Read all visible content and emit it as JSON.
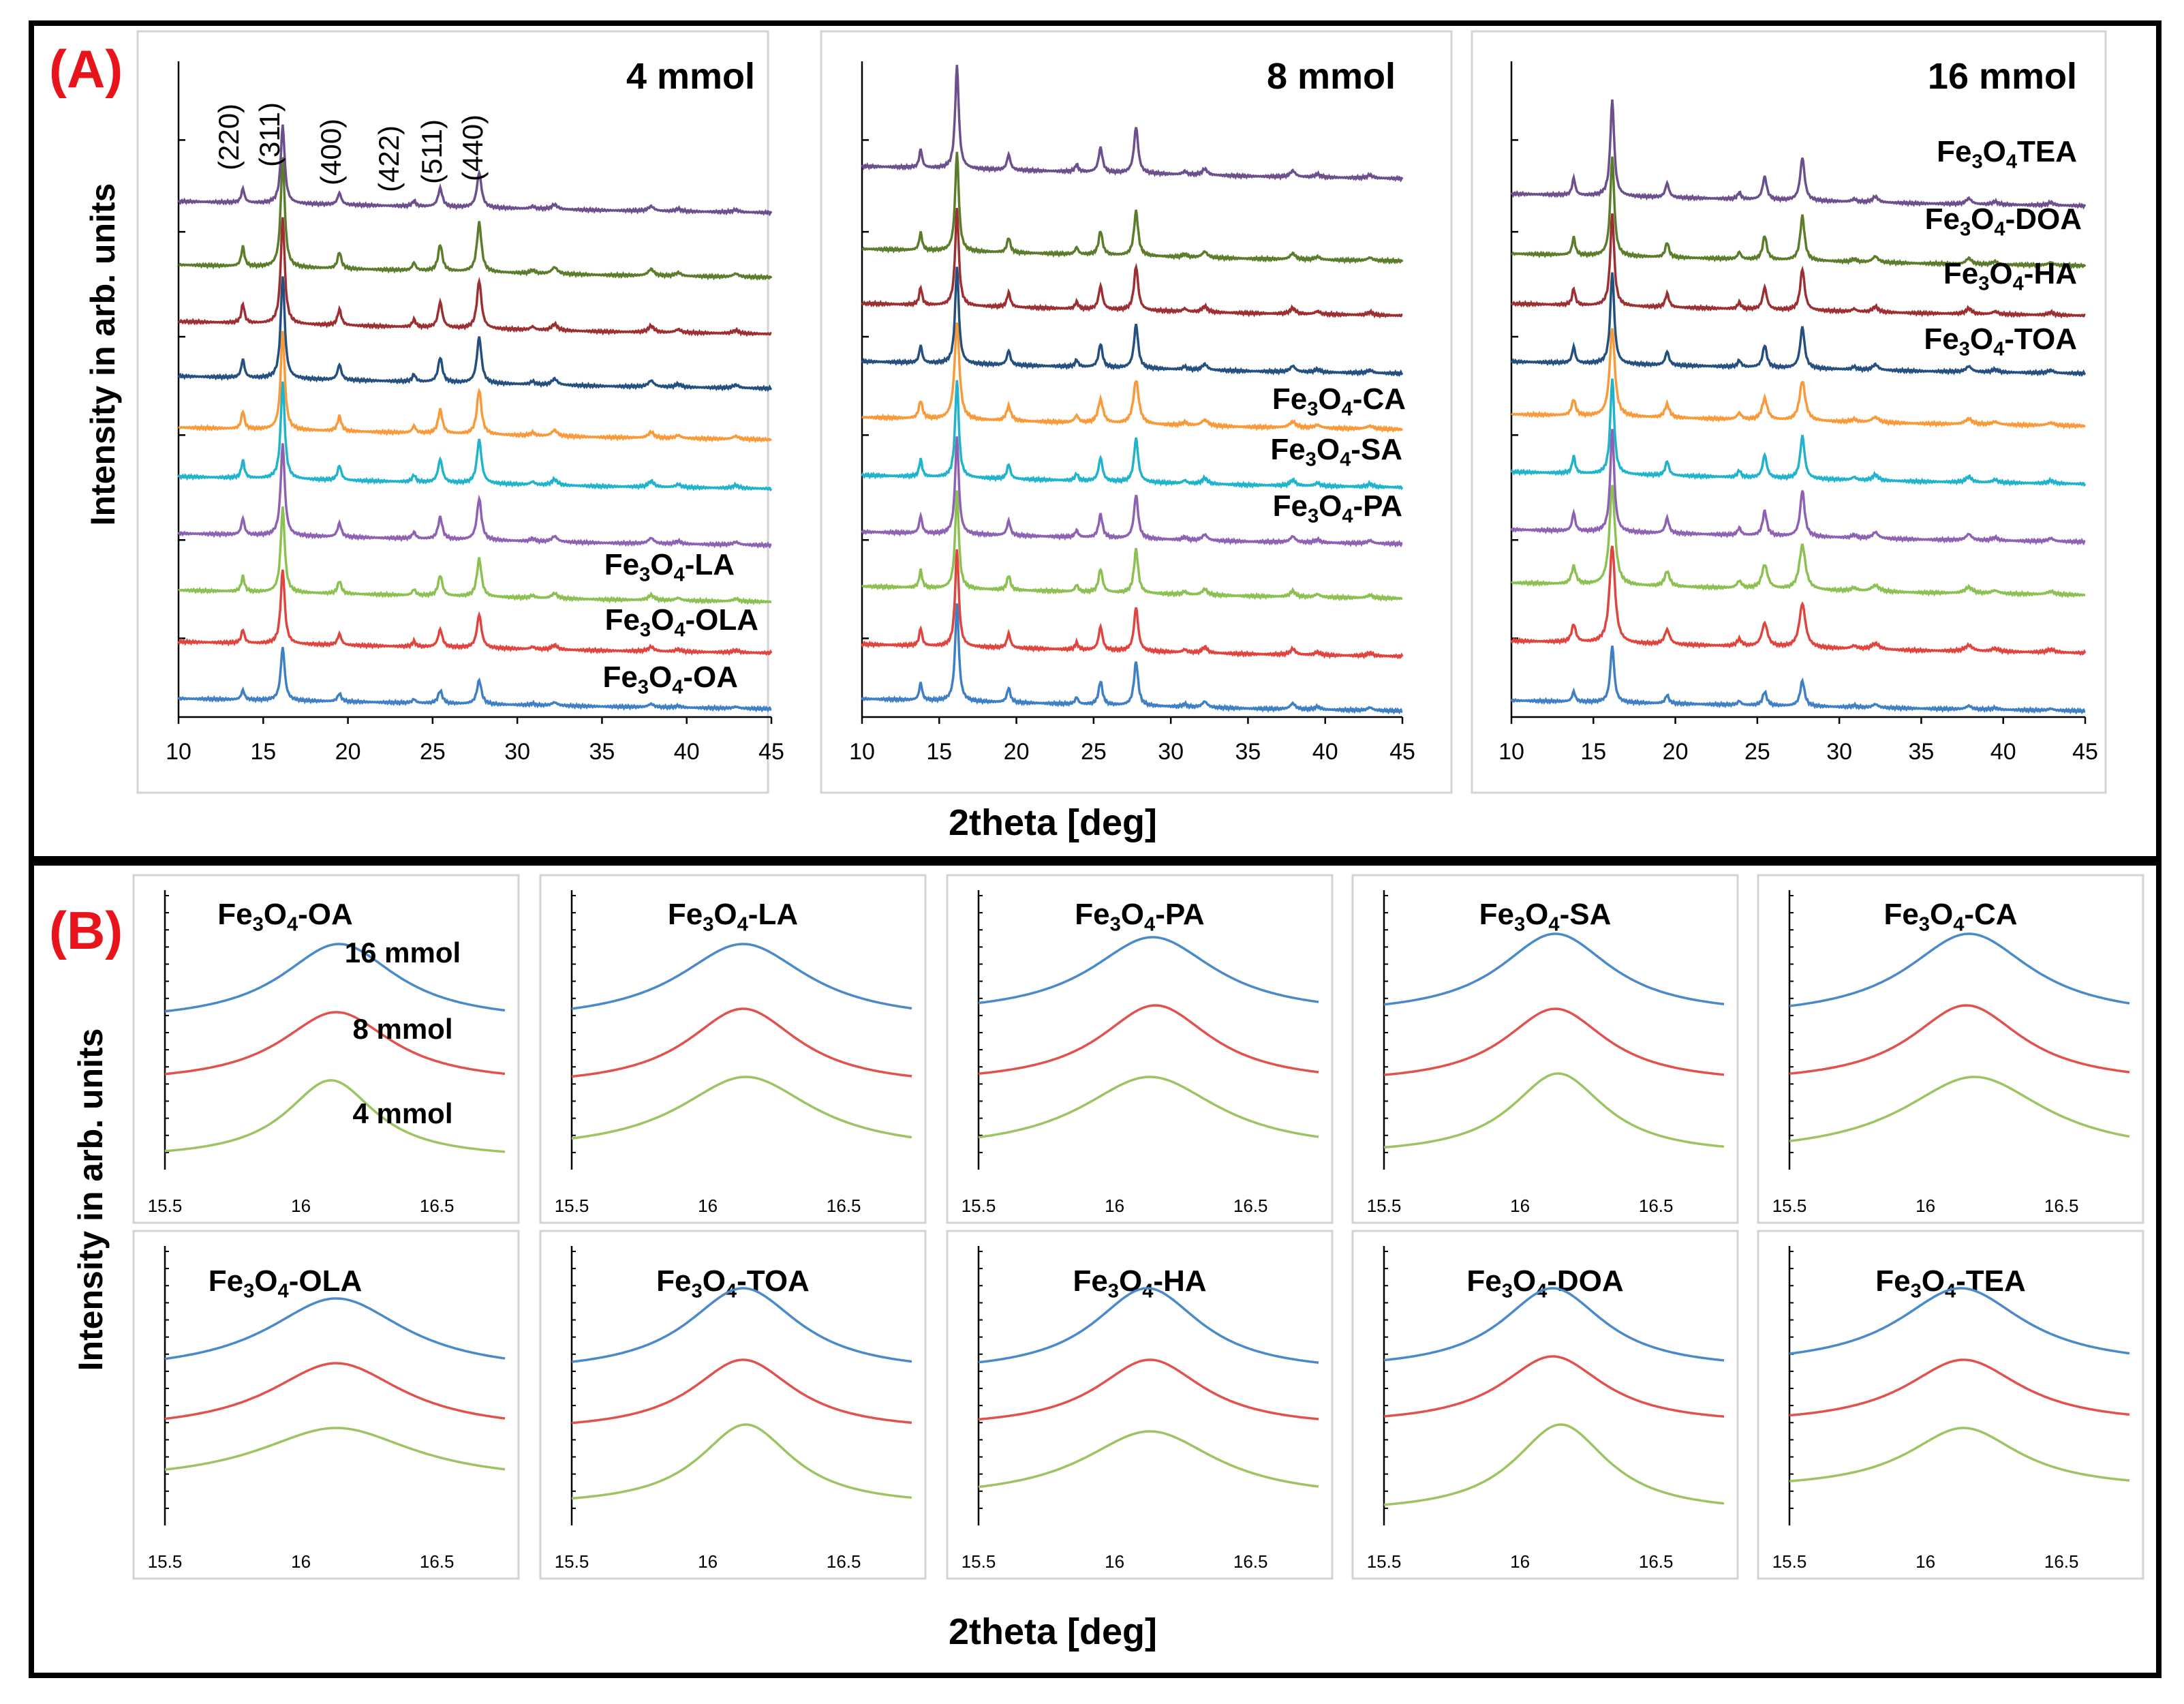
{
  "figure": {
    "panel_a_label": "(A)",
    "panel_b_label": "(B)",
    "ylabel": "Intensity in arb. units",
    "xlabel": "2theta [deg]"
  },
  "colors": {
    "frame": "#000000",
    "subpanel_border": "#d4d4d4",
    "panel_label": "#e8141b"
  },
  "chart_data": [
    {
      "id": "A-4mmol",
      "type": "line",
      "title": "4 mmol",
      "xlabel": "2theta [deg]",
      "ylabel": "Intensity in arb. units",
      "xlim": [
        10,
        45
      ],
      "xticks": [
        "10",
        "15",
        "20",
        "25",
        "30",
        "35",
        "40",
        "45"
      ],
      "miller_indices": [
        {
          "label": "(220)",
          "x": 13.8
        },
        {
          "label": "(311)",
          "x": 16.2
        },
        {
          "label": "(400)",
          "x": 19.5
        },
        {
          "label": "(422)",
          "x": 23.9
        },
        {
          "label": "(511)",
          "x": 25.5
        },
        {
          "label": "(440)",
          "x": 27.8
        }
      ],
      "series": [
        {
          "name": "Fe3O4-OA",
          "color": "#3f7fc4",
          "label": {
            "base": "Fe",
            "s1": "3",
            "mid": "O",
            "s2": "4",
            "suffix": "-OA"
          }
        },
        {
          "name": "Fe3O4-OLA",
          "color": "#e0443e",
          "label": {
            "base": "Fe",
            "s1": "3",
            "mid": "O",
            "s2": "4",
            "suffix": "-OLA"
          }
        },
        {
          "name": "Fe3O4-LA",
          "color": "#8cc052",
          "label": {
            "base": "Fe",
            "s1": "3",
            "mid": "O",
            "s2": "4",
            "suffix": "-LA"
          }
        },
        {
          "name": "Fe3O4-PA",
          "color": "#8e62b3"
        },
        {
          "name": "Fe3O4-SA",
          "color": "#20b3cc"
        },
        {
          "name": "Fe3O4-CA",
          "color": "#f89a3a"
        },
        {
          "name": "Fe3O4-TOA",
          "color": "#244f7e"
        },
        {
          "name": "Fe3O4-HA",
          "color": "#9b2f31"
        },
        {
          "name": "Fe3O4-DOA",
          "color": "#5b7d2b"
        },
        {
          "name": "Fe3O4-TEA",
          "color": "#6c4f8c"
        }
      ]
    },
    {
      "id": "A-8mmol",
      "type": "line",
      "title": "8 mmol",
      "xlabel": "2theta [deg]",
      "ylabel": "Intensity in arb. units",
      "xlim": [
        10,
        45
      ],
      "xticks": [
        "10",
        "15",
        "20",
        "25",
        "30",
        "35",
        "40",
        "45"
      ],
      "series": [
        {
          "name": "Fe3O4-OA",
          "color": "#3f7fc4"
        },
        {
          "name": "Fe3O4-OLA",
          "color": "#e0443e"
        },
        {
          "name": "Fe3O4-LA",
          "color": "#8cc052"
        },
        {
          "name": "Fe3O4-PA",
          "color": "#8e62b3",
          "label": {
            "base": "Fe",
            "s1": "3",
            "mid": "O",
            "s2": "4",
            "suffix": "-PA"
          }
        },
        {
          "name": "Fe3O4-SA",
          "color": "#20b3cc",
          "label": {
            "base": "Fe",
            "s1": "3",
            "mid": "O",
            "s2": "4",
            "suffix": "-SA"
          }
        },
        {
          "name": "Fe3O4-CA",
          "color": "#f89a3a",
          "label": {
            "base": "Fe",
            "s1": "3",
            "mid": "O",
            "s2": "4",
            "suffix": "-CA"
          }
        },
        {
          "name": "Fe3O4-TOA",
          "color": "#244f7e"
        },
        {
          "name": "Fe3O4-HA",
          "color": "#9b2f31"
        },
        {
          "name": "Fe3O4-DOA",
          "color": "#5b7d2b"
        },
        {
          "name": "Fe3O4-TEA",
          "color": "#6c4f8c"
        }
      ]
    },
    {
      "id": "A-16mmol",
      "type": "line",
      "title": "16 mmol",
      "xlabel": "2theta [deg]",
      "ylabel": "Intensity in arb. units",
      "xlim": [
        10,
        45
      ],
      "xticks": [
        "10",
        "15",
        "20",
        "25",
        "30",
        "35",
        "40",
        "45"
      ],
      "series": [
        {
          "name": "Fe3O4-OA",
          "color": "#3f7fc4"
        },
        {
          "name": "Fe3O4-OLA",
          "color": "#e0443e"
        },
        {
          "name": "Fe3O4-LA",
          "color": "#8cc052"
        },
        {
          "name": "Fe3O4-PA",
          "color": "#8e62b3"
        },
        {
          "name": "Fe3O4-SA",
          "color": "#20b3cc"
        },
        {
          "name": "Fe3O4-CA",
          "color": "#f89a3a"
        },
        {
          "name": "Fe3O4-TOA",
          "color": "#244f7e",
          "label": {
            "base": "Fe",
            "s1": "3",
            "mid": "O",
            "s2": "4",
            "suffix": "-TOA"
          }
        },
        {
          "name": "Fe3O4-HA",
          "color": "#9b2f31",
          "label": {
            "base": "Fe",
            "s1": "3",
            "mid": "O",
            "s2": "4",
            "suffix": "-HA"
          }
        },
        {
          "name": "Fe3O4-DOA",
          "color": "#5b7d2b",
          "label": {
            "base": "Fe",
            "s1": "3",
            "mid": "O",
            "s2": "4",
            "suffix": "-DOA"
          }
        },
        {
          "name": "Fe3O4-TEA",
          "color": "#6c4f8c",
          "label": {
            "base": "Fe",
            "s1": "3",
            "mid": "O",
            "s2": "4",
            "suffix": "TEA"
          }
        }
      ]
    },
    {
      "id": "B-zoom",
      "type": "line",
      "description_level": "small multiples of the (311) peak",
      "xlabel": "2theta [deg]",
      "ylabel": "Intensity in arb. units",
      "xlim": [
        15.5,
        16.75
      ],
      "xticks": [
        "15.5",
        "16",
        "16.5"
      ],
      "concentrations": [
        {
          "label": "16 mmol",
          "color": "#4a8ac9"
        },
        {
          "label": "8 mmol",
          "color": "#e2524d"
        },
        {
          "label": "4 mmol",
          "color": "#9cc463"
        }
      ],
      "panels": [
        {
          "sample": "Fe3O4-OA",
          "label": {
            "base": "Fe",
            "s1": "3",
            "mid": "O",
            "s2": "4",
            "suffix": "-OA"
          },
          "peak_2theta": [
            16.14,
            16.13,
            16.11
          ],
          "fwhm": [
            0.52,
            0.5,
            0.4
          ]
        },
        {
          "sample": "Fe3O4-LA",
          "label": {
            "base": "Fe",
            "s1": "3",
            "mid": "O",
            "s2": "4",
            "suffix": "-LA"
          },
          "peak_2theta": [
            16.13,
            16.13,
            16.14
          ],
          "fwhm": [
            0.58,
            0.5,
            0.6
          ]
        },
        {
          "sample": "Fe3O4-PA",
          "label": {
            "base": "Fe",
            "s1": "3",
            "mid": "O",
            "s2": "4",
            "suffix": "-PA"
          },
          "peak_2theta": [
            16.14,
            16.15,
            16.13
          ],
          "fwhm": [
            0.56,
            0.5,
            0.62
          ]
        },
        {
          "sample": "Fe3O4-SA",
          "label": {
            "base": "Fe",
            "s1": "3",
            "mid": "O",
            "s2": "4",
            "suffix": "-SA"
          },
          "peak_2theta": [
            16.13,
            16.13,
            16.14
          ],
          "fwhm": [
            0.5,
            0.46,
            0.42
          ]
        },
        {
          "sample": "Fe3O4-CA",
          "label": {
            "base": "Fe",
            "s1": "3",
            "mid": "O",
            "s2": "4",
            "suffix": "-CA"
          },
          "peak_2theta": [
            16.16,
            16.15,
            16.18
          ],
          "fwhm": [
            0.56,
            0.5,
            0.64
          ]
        },
        {
          "sample": "Fe3O4-OLA",
          "label": {
            "base": "Fe",
            "s1": "3",
            "mid": "O",
            "s2": "4",
            "suffix": "-OLA"
          },
          "peak_2theta": [
            16.13,
            16.13,
            16.13
          ],
          "fwhm": [
            0.62,
            0.6,
            0.7
          ]
        },
        {
          "sample": "Fe3O4-TOA",
          "label": {
            "base": "Fe",
            "s1": "3",
            "mid": "O",
            "s2": "4",
            "suffix": "-TOA"
          },
          "peak_2theta": [
            16.13,
            16.13,
            16.14
          ],
          "fwhm": [
            0.5,
            0.46,
            0.42
          ]
        },
        {
          "sample": "Fe3O4-HA",
          "label": {
            "base": "Fe",
            "s1": "3",
            "mid": "O",
            "s2": "4",
            "suffix": "-HA"
          },
          "peak_2theta": [
            16.12,
            16.13,
            16.13
          ],
          "fwhm": [
            0.48,
            0.48,
            0.6
          ]
        },
        {
          "sample": "Fe3O4-DOA",
          "label": {
            "base": "Fe",
            "s1": "3",
            "mid": "O",
            "s2": "4",
            "suffix": "-DOA"
          },
          "peak_2theta": [
            16.12,
            16.12,
            16.15
          ],
          "fwhm": [
            0.46,
            0.46,
            0.42
          ]
        },
        {
          "sample": "Fe3O4-TEA",
          "label": {
            "base": "Fe",
            "s1": "3",
            "mid": "O",
            "s2": "4",
            "suffix": "-TEA"
          },
          "peak_2theta": [
            16.13,
            16.14,
            16.14
          ],
          "fwhm": [
            0.56,
            0.52,
            0.5
          ]
        }
      ]
    }
  ]
}
